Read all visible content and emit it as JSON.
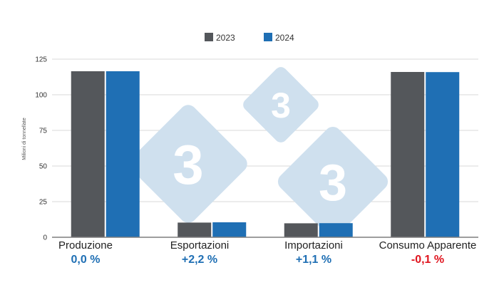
{
  "colors": {
    "series_2023": "#54575b",
    "series_2024": "#1f6fb4",
    "positive_change": "#1f6fb4",
    "negative_change": "#e0141e",
    "grid": "#d9d9d9",
    "axis": "#7f7f7f",
    "watermark": "#cfe0ee"
  },
  "watermark": {
    "text": "3"
  },
  "chart_data": {
    "type": "bar",
    "categories": [
      "Produzione",
      "Esportazioni",
      "Importazioni",
      "Consumo Apparente"
    ],
    "changes": [
      "0,0 %",
      "+2,2 %",
      "+1,1 %",
      "-0,1 %"
    ],
    "change_signs": [
      "positive",
      "positive",
      "positive",
      "negative"
    ],
    "series": [
      {
        "name": "2023",
        "values": [
          116.5,
          10.3,
          9.8,
          116
        ]
      },
      {
        "name": "2024",
        "values": [
          116.5,
          10.5,
          9.9,
          115.9
        ]
      }
    ],
    "ylabel": "Milioni di tonnellate",
    "ylim": [
      0,
      125
    ],
    "yticks": [
      0,
      25,
      50,
      75,
      100,
      125
    ],
    "grid": true,
    "legend": "top-center"
  }
}
